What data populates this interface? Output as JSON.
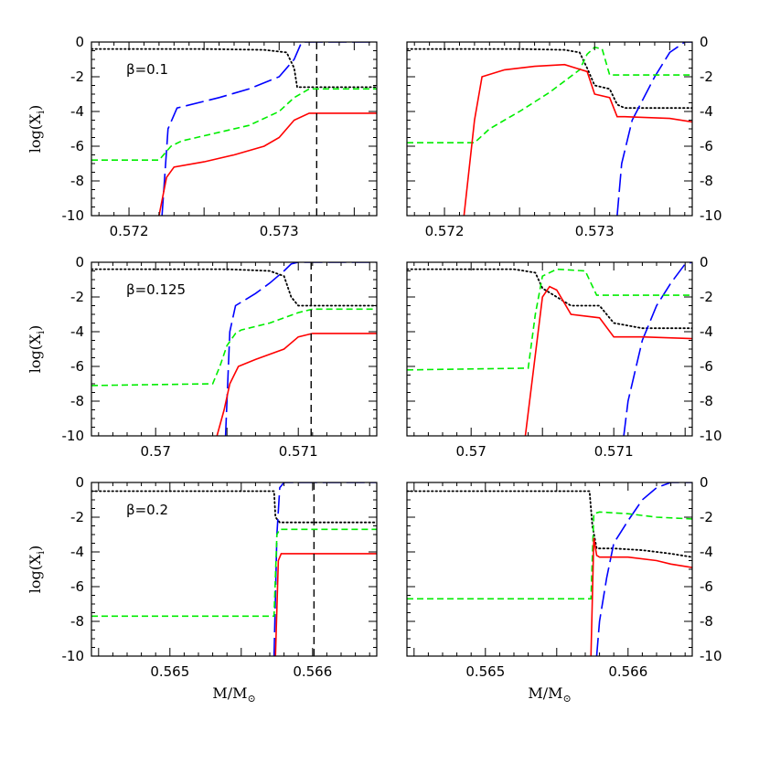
{
  "figure": {
    "xlabel": "M/M",
    "xlabel_sub": "⊙",
    "ylabel": "log(X",
    "ylabel_sub": "i",
    "ylabel_close": ")"
  },
  "colors": {
    "black": "#000000",
    "blue": "#0000ff",
    "green": "#00ee00",
    "red": "#ff0000"
  },
  "chart_data": [
    {
      "type": "line",
      "row": 0,
      "col": 0,
      "annotation": "β=0.1",
      "xlim": [
        0.57175,
        0.57365
      ],
      "ylim": [
        -10,
        0
      ],
      "xticks": [
        0.572,
        0.573
      ],
      "xticklabels": [
        "0.572",
        "0.573"
      ],
      "yticks": [
        0,
        -2,
        -4,
        -6,
        -8,
        -10
      ],
      "yticklabels": [
        "0",
        "-2",
        "-4",
        "-6",
        "-8",
        "-10"
      ],
      "ytick_side": "left",
      "xtick_labels_shown": true,
      "vline": 0.57325,
      "series": [
        {
          "color": "black",
          "style": "dotted",
          "x": [
            0.57175,
            0.5725,
            0.5729,
            0.57305,
            0.5731,
            0.57312,
            0.5732,
            0.57365
          ],
          "y": [
            -0.4,
            -0.4,
            -0.45,
            -0.6,
            -1.5,
            -2.6,
            -2.6,
            -2.6
          ]
        },
        {
          "color": "blue",
          "style": "longdash",
          "x": [
            0.57222,
            0.57226,
            0.57232,
            0.5726,
            0.5728,
            0.573,
            0.5731,
            0.57315,
            0.57365
          ],
          "y": [
            -10,
            -5,
            -3.8,
            -3.2,
            -2.7,
            -2.0,
            -1.0,
            0,
            0
          ]
        },
        {
          "color": "green",
          "style": "dashed",
          "x": [
            0.57175,
            0.5722,
            0.57228,
            0.57235,
            0.5726,
            0.5728,
            0.573,
            0.5731,
            0.5732,
            0.57365
          ],
          "y": [
            -6.8,
            -6.8,
            -6.0,
            -5.7,
            -5.2,
            -4.8,
            -4.0,
            -3.2,
            -2.7,
            -2.7
          ]
        },
        {
          "color": "red",
          "style": "solid",
          "x": [
            0.5722,
            0.57225,
            0.5723,
            0.5725,
            0.5727,
            0.5729,
            0.573,
            0.5731,
            0.5732,
            0.57365
          ],
          "y": [
            -10,
            -7.8,
            -7.2,
            -6.9,
            -6.5,
            -6.0,
            -5.5,
            -4.5,
            -4.1,
            -4.1
          ]
        }
      ]
    },
    {
      "type": "line",
      "row": 0,
      "col": 1,
      "annotation": "",
      "xlim": [
        0.57175,
        0.57365
      ],
      "ylim": [
        -10,
        0
      ],
      "xticks": [
        0.572,
        0.573
      ],
      "xticklabels": [
        "0.572",
        "0.573"
      ],
      "yticks": [
        0,
        -2,
        -4,
        -6,
        -8,
        -10
      ],
      "yticklabels": [
        "0",
        "-2",
        "-4",
        "-6",
        "-8",
        "-10"
      ],
      "ytick_side": "right",
      "xtick_labels_shown": true,
      "vline": null,
      "series": [
        {
          "color": "black",
          "style": "dotted",
          "x": [
            0.57175,
            0.5725,
            0.5728,
            0.5729,
            0.57295,
            0.573,
            0.5731,
            0.57315,
            0.5732,
            0.57365
          ],
          "y": [
            -0.4,
            -0.4,
            -0.45,
            -0.6,
            -1.5,
            -2.5,
            -2.7,
            -3.6,
            -3.8,
            -3.8
          ]
        },
        {
          "color": "blue",
          "style": "longdash",
          "x": [
            0.57315,
            0.57318,
            0.57325,
            0.5734,
            0.5735,
            0.5736,
            0.57365
          ],
          "y": [
            -10,
            -7,
            -4.5,
            -2,
            -0.6,
            0,
            0
          ]
        },
        {
          "color": "green",
          "style": "dashed",
          "x": [
            0.57175,
            0.5722,
            0.5723,
            0.5725,
            0.5727,
            0.5729,
            0.57295,
            0.573,
            0.57305,
            0.5731,
            0.5732,
            0.57365
          ],
          "y": [
            -5.8,
            -5.8,
            -5.0,
            -4.0,
            -2.9,
            -1.6,
            -0.7,
            -0.3,
            -0.4,
            -1.9,
            -1.9,
            -1.9
          ]
        },
        {
          "color": "red",
          "style": "solid",
          "x": [
            0.57213,
            0.5722,
            0.57225,
            0.5724,
            0.5726,
            0.5728,
            0.57295,
            0.573,
            0.5731,
            0.57315,
            0.5732,
            0.5735,
            0.57365
          ],
          "y": [
            -10,
            -4.5,
            -2.0,
            -1.6,
            -1.4,
            -1.3,
            -1.7,
            -3.0,
            -3.2,
            -4.3,
            -4.3,
            -4.4,
            -4.6
          ]
        }
      ]
    },
    {
      "type": "line",
      "row": 1,
      "col": 0,
      "annotation": "β=0.125",
      "xlim": [
        0.56955,
        0.57155
      ],
      "ylim": [
        -10,
        0
      ],
      "xticks": [
        0.57,
        0.571
      ],
      "xticklabels": [
        "0.57",
        "0.571"
      ],
      "yticks": [
        0,
        -2,
        -4,
        -6,
        -8,
        -10
      ],
      "yticklabels": [
        "0",
        "-2",
        "-4",
        "-6",
        "-8",
        "-10"
      ],
      "ytick_side": "left",
      "xtick_labels_shown": true,
      "vline": 0.57109,
      "series": [
        {
          "color": "black",
          "style": "dotted",
          "x": [
            0.56955,
            0.5705,
            0.5708,
            0.5709,
            0.57095,
            0.571,
            0.57155
          ],
          "y": [
            -0.4,
            -0.4,
            -0.5,
            -0.8,
            -2.0,
            -2.5,
            -2.5
          ]
        },
        {
          "color": "blue",
          "style": "longdash",
          "x": [
            0.57049,
            0.57052,
            0.57056,
            0.5707,
            0.5708,
            0.5709,
            0.57095,
            0.571,
            0.57155
          ],
          "y": [
            -10,
            -4,
            -2.5,
            -1.8,
            -1.2,
            -0.5,
            -0.1,
            0,
            0
          ]
        },
        {
          "color": "green",
          "style": "dashed",
          "x": [
            0.56955,
            0.5704,
            0.57045,
            0.5705,
            0.57056,
            0.5706,
            0.5708,
            0.571,
            0.5711,
            0.57155
          ],
          "y": [
            -7.1,
            -7.0,
            -6.0,
            -4.8,
            -4.1,
            -3.9,
            -3.5,
            -2.9,
            -2.7,
            -2.7
          ]
        },
        {
          "color": "red",
          "style": "solid",
          "x": [
            0.57043,
            0.57048,
            0.57052,
            0.57058,
            0.5707,
            0.5709,
            0.571,
            0.5711,
            0.57155
          ],
          "y": [
            -10,
            -8.5,
            -7.0,
            -6.0,
            -5.6,
            -5.0,
            -4.3,
            -4.1,
            -4.1
          ]
        }
      ]
    },
    {
      "type": "line",
      "row": 1,
      "col": 1,
      "annotation": "",
      "xlim": [
        0.56955,
        0.57155
      ],
      "ylim": [
        -10,
        0
      ],
      "xticks": [
        0.57,
        0.571
      ],
      "xticklabels": [
        "0.57",
        "0.571"
      ],
      "yticks": [
        0,
        -2,
        -4,
        -6,
        -8,
        -10
      ],
      "yticklabels": [
        "0",
        "-2",
        "-4",
        "-6",
        "-8",
        "-10"
      ],
      "ytick_side": "right",
      "xtick_labels_shown": true,
      "vline": null,
      "series": [
        {
          "color": "black",
          "style": "dotted",
          "x": [
            0.56955,
            0.5703,
            0.57045,
            0.5705,
            0.5707,
            0.5709,
            0.571,
            0.5712,
            0.57155
          ],
          "y": [
            -0.4,
            -0.4,
            -0.6,
            -1.5,
            -2.5,
            -2.5,
            -3.5,
            -3.8,
            -3.8
          ]
        },
        {
          "color": "blue",
          "style": "longdash",
          "x": [
            0.57107,
            0.5711,
            0.5712,
            0.5713,
            0.5714,
            0.5715,
            0.57155
          ],
          "y": [
            -10,
            -8,
            -4.5,
            -2.5,
            -1.2,
            -0.1,
            0
          ]
        },
        {
          "color": "green",
          "style": "dashed",
          "x": [
            0.56955,
            0.5704,
            0.57045,
            0.5705,
            0.5706,
            0.5708,
            0.57088,
            0.571,
            0.57155
          ],
          "y": [
            -6.2,
            -6.1,
            -3.0,
            -0.8,
            -0.4,
            -0.5,
            -1.9,
            -1.9,
            -1.9
          ]
        },
        {
          "color": "red",
          "style": "solid",
          "x": [
            0.57038,
            0.5705,
            0.57055,
            0.5706,
            0.5707,
            0.5709,
            0.571,
            0.5712,
            0.57155
          ],
          "y": [
            -10,
            -2.0,
            -1.4,
            -1.6,
            -3.0,
            -3.2,
            -4.3,
            -4.3,
            -4.4
          ]
        }
      ]
    },
    {
      "type": "line",
      "row": 2,
      "col": 0,
      "annotation": "β=0.2",
      "xlim": [
        0.56445,
        0.56645
      ],
      "ylim": [
        -10,
        0
      ],
      "xticks": [
        0.565,
        0.566
      ],
      "xticklabels": [
        "0.565",
        "0.566"
      ],
      "yticks": [
        0,
        -2,
        -4,
        -6,
        -8,
        -10
      ],
      "yticklabels": [
        "0",
        "-2",
        "-4",
        "-6",
        "-8",
        "-10"
      ],
      "ytick_side": "left",
      "xtick_labels_shown": true,
      "vline": 0.56601,
      "series": [
        {
          "color": "black",
          "style": "dotted",
          "x": [
            0.56445,
            0.56573,
            0.56574,
            0.56577,
            0.56645
          ],
          "y": [
            -0.5,
            -0.5,
            -2.0,
            -2.3,
            -2.3
          ]
        },
        {
          "color": "blue",
          "style": "longdash",
          "x": [
            0.56573,
            0.56575,
            0.56577,
            0.5658,
            0.56645
          ],
          "y": [
            -10,
            -3.0,
            -0.3,
            0,
            0
          ]
        },
        {
          "color": "green",
          "style": "dashed",
          "x": [
            0.56445,
            0.56573,
            0.56575,
            0.56577,
            0.56645
          ],
          "y": [
            -7.7,
            -7.7,
            -3.0,
            -2.7,
            -2.7
          ]
        },
        {
          "color": "red",
          "style": "solid",
          "x": [
            0.56574,
            0.56576,
            0.56578,
            0.56645
          ],
          "y": [
            -10,
            -4.5,
            -4.1,
            -4.1
          ]
        }
      ]
    },
    {
      "type": "line",
      "row": 2,
      "col": 1,
      "annotation": "",
      "xlim": [
        0.56445,
        0.56645
      ],
      "ylim": [
        -10,
        0
      ],
      "xticks": [
        0.565,
        0.566
      ],
      "xticklabels": [
        "0.565",
        "0.566"
      ],
      "yticks": [
        0,
        -2,
        -4,
        -6,
        -8,
        -10
      ],
      "yticklabels": [
        "0",
        "-2",
        "-4",
        "-6",
        "-8",
        "-10"
      ],
      "ytick_side": "right",
      "xtick_labels_shown": true,
      "vline": null,
      "series": [
        {
          "color": "black",
          "style": "dotted",
          "x": [
            0.56445,
            0.56573,
            0.56575,
            0.56578,
            0.5659,
            0.5661,
            0.5663,
            0.56645
          ],
          "y": [
            -0.5,
            -0.5,
            -2.5,
            -3.8,
            -3.8,
            -3.9,
            -4.1,
            -4.3
          ]
        },
        {
          "color": "blue",
          "style": "longdash",
          "x": [
            0.56578,
            0.5658,
            0.56585,
            0.5659,
            0.566,
            0.5661,
            0.5662,
            0.5663,
            0.56645
          ],
          "y": [
            -10,
            -8,
            -5.5,
            -3.5,
            -2.2,
            -1.0,
            -0.3,
            0,
            0
          ]
        },
        {
          "color": "green",
          "style": "dashed",
          "x": [
            0.56445,
            0.56574,
            0.56576,
            0.5658,
            0.566,
            0.5662,
            0.56645
          ],
          "y": [
            -6.7,
            -6.7,
            -1.8,
            -1.7,
            -1.8,
            -2.0,
            -2.1
          ]
        },
        {
          "color": "red",
          "style": "solid",
          "x": [
            0.56574,
            0.56576,
            0.56578,
            0.5658,
            0.566,
            0.5662,
            0.5663,
            0.56645
          ],
          "y": [
            -10,
            -3.2,
            -4.2,
            -4.3,
            -4.3,
            -4.5,
            -4.7,
            -4.9
          ]
        }
      ]
    }
  ]
}
